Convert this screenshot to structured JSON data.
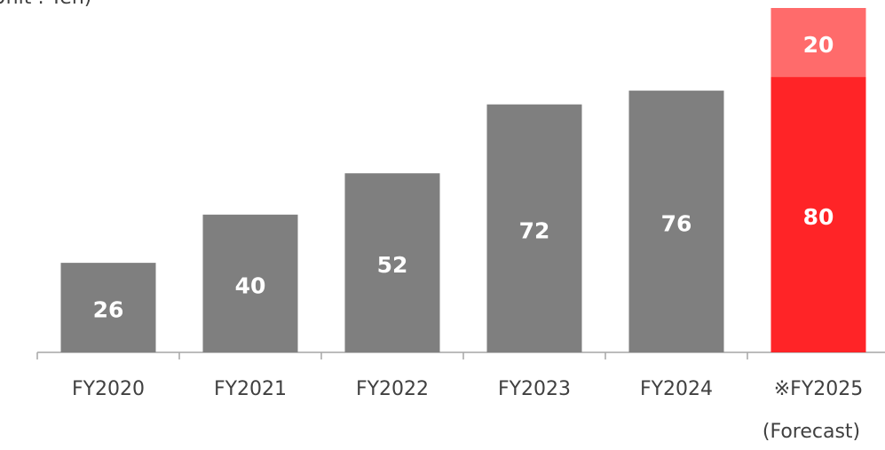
{
  "chart_data": {
    "type": "stacked_bar",
    "unit_note": "(Unit : Yen)",
    "categories": [
      "FY2020",
      "FY2021",
      "FY2022",
      "FY2023",
      "FY2024",
      "※FY2025"
    ],
    "forecast_note": "(Forecast)",
    "series": [
      {
        "colors": [
          "#7f7f7f",
          "#7f7f7f",
          "#7f7f7f",
          "#7f7f7f",
          "#7f7f7f",
          "#ff2427"
        ],
        "values": [
          26,
          40,
          52,
          72,
          76,
          80
        ]
      },
      {
        "color": "#ff6b6b",
        "values": [
          null,
          null,
          null,
          null,
          null,
          20
        ]
      }
    ],
    "ylim": [
      0,
      100
    ],
    "grid": false
  }
}
